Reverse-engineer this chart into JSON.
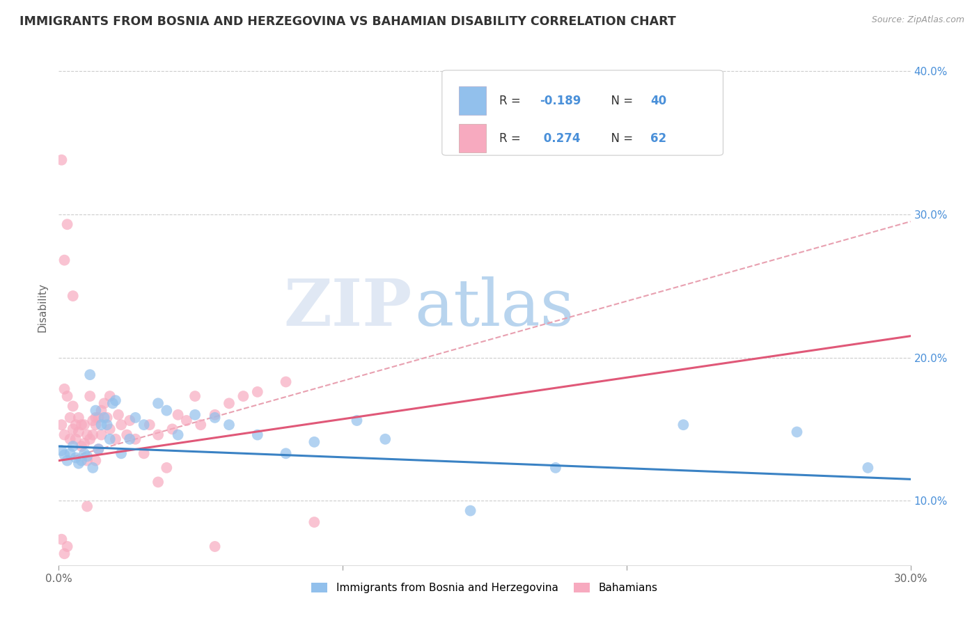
{
  "title": "IMMIGRANTS FROM BOSNIA AND HERZEGOVINA VS BAHAMIAN DISABILITY CORRELATION CHART",
  "source": "Source: ZipAtlas.com",
  "ylabel": "Disability",
  "xlim": [
    0.0,
    0.3
  ],
  "ylim": [
    0.055,
    0.415
  ],
  "yticks": [
    0.1,
    0.2,
    0.3,
    0.4
  ],
  "ytick_labels": [
    "10.0%",
    "20.0%",
    "30.0%",
    "40.0%"
  ],
  "xticks": [
    0.0,
    0.1,
    0.2,
    0.3
  ],
  "xtick_labels": [
    "0.0%",
    "",
    "",
    "30.0%"
  ],
  "watermark_zip": "ZIP",
  "watermark_atlas": "atlas",
  "color_blue": "#92C0EC",
  "color_pink": "#F7AABF",
  "line_blue": "#3A82C4",
  "line_pink": "#E05878",
  "line_dashed_color": "#E8A0B0",
  "legend_color": "#3A7AC4",
  "blue_scatter": [
    [
      0.001,
      0.135
    ],
    [
      0.002,
      0.132
    ],
    [
      0.003,
      0.128
    ],
    [
      0.004,
      0.133
    ],
    [
      0.005,
      0.138
    ],
    [
      0.006,
      0.13
    ],
    [
      0.007,
      0.126
    ],
    [
      0.008,
      0.128
    ],
    [
      0.009,
      0.133
    ],
    [
      0.01,
      0.131
    ],
    [
      0.011,
      0.188
    ],
    [
      0.012,
      0.123
    ],
    [
      0.013,
      0.163
    ],
    [
      0.014,
      0.136
    ],
    [
      0.015,
      0.153
    ],
    [
      0.016,
      0.158
    ],
    [
      0.017,
      0.153
    ],
    [
      0.018,
      0.143
    ],
    [
      0.019,
      0.168
    ],
    [
      0.02,
      0.17
    ],
    [
      0.022,
      0.133
    ],
    [
      0.025,
      0.143
    ],
    [
      0.027,
      0.158
    ],
    [
      0.03,
      0.153
    ],
    [
      0.035,
      0.168
    ],
    [
      0.038,
      0.163
    ],
    [
      0.042,
      0.146
    ],
    [
      0.048,
      0.16
    ],
    [
      0.055,
      0.158
    ],
    [
      0.06,
      0.153
    ],
    [
      0.07,
      0.146
    ],
    [
      0.08,
      0.133
    ],
    [
      0.09,
      0.141
    ],
    [
      0.105,
      0.156
    ],
    [
      0.115,
      0.143
    ],
    [
      0.145,
      0.093
    ],
    [
      0.175,
      0.123
    ],
    [
      0.22,
      0.153
    ],
    [
      0.26,
      0.148
    ],
    [
      0.285,
      0.123
    ]
  ],
  "pink_scatter": [
    [
      0.001,
      0.153
    ],
    [
      0.001,
      0.338
    ],
    [
      0.002,
      0.178
    ],
    [
      0.002,
      0.268
    ],
    [
      0.002,
      0.146
    ],
    [
      0.003,
      0.173
    ],
    [
      0.003,
      0.293
    ],
    [
      0.003,
      0.068
    ],
    [
      0.004,
      0.143
    ],
    [
      0.004,
      0.158
    ],
    [
      0.005,
      0.15
    ],
    [
      0.005,
      0.166
    ],
    [
      0.005,
      0.243
    ],
    [
      0.006,
      0.143
    ],
    [
      0.006,
      0.153
    ],
    [
      0.007,
      0.148
    ],
    [
      0.007,
      0.158
    ],
    [
      0.008,
      0.153
    ],
    [
      0.008,
      0.138
    ],
    [
      0.009,
      0.153
    ],
    [
      0.009,
      0.14
    ],
    [
      0.01,
      0.128
    ],
    [
      0.01,
      0.146
    ],
    [
      0.01,
      0.096
    ],
    [
      0.011,
      0.143
    ],
    [
      0.011,
      0.173
    ],
    [
      0.012,
      0.156
    ],
    [
      0.012,
      0.146
    ],
    [
      0.013,
      0.158
    ],
    [
      0.013,
      0.153
    ],
    [
      0.013,
      0.128
    ],
    [
      0.014,
      0.158
    ],
    [
      0.014,
      0.136
    ],
    [
      0.015,
      0.163
    ],
    [
      0.015,
      0.146
    ],
    [
      0.016,
      0.168
    ],
    [
      0.017,
      0.158
    ],
    [
      0.018,
      0.15
    ],
    [
      0.018,
      0.173
    ],
    [
      0.02,
      0.143
    ],
    [
      0.021,
      0.16
    ],
    [
      0.022,
      0.153
    ],
    [
      0.024,
      0.146
    ],
    [
      0.025,
      0.156
    ],
    [
      0.027,
      0.143
    ],
    [
      0.03,
      0.133
    ],
    [
      0.032,
      0.153
    ],
    [
      0.035,
      0.146
    ],
    [
      0.035,
      0.113
    ],
    [
      0.038,
      0.123
    ],
    [
      0.04,
      0.15
    ],
    [
      0.042,
      0.16
    ],
    [
      0.045,
      0.156
    ],
    [
      0.048,
      0.173
    ],
    [
      0.05,
      0.153
    ],
    [
      0.055,
      0.068
    ],
    [
      0.055,
      0.16
    ],
    [
      0.06,
      0.168
    ],
    [
      0.065,
      0.173
    ],
    [
      0.07,
      0.176
    ],
    [
      0.08,
      0.183
    ],
    [
      0.09,
      0.085
    ],
    [
      0.002,
      0.063
    ],
    [
      0.001,
      0.073
    ]
  ],
  "blue_line_x": [
    0.0,
    0.3
  ],
  "blue_line_y": [
    0.138,
    0.115
  ],
  "pink_line_x": [
    0.0,
    0.3
  ],
  "pink_line_y": [
    0.128,
    0.215
  ],
  "dashed_line_x": [
    0.0,
    0.3
  ],
  "dashed_line_y": [
    0.128,
    0.295
  ]
}
